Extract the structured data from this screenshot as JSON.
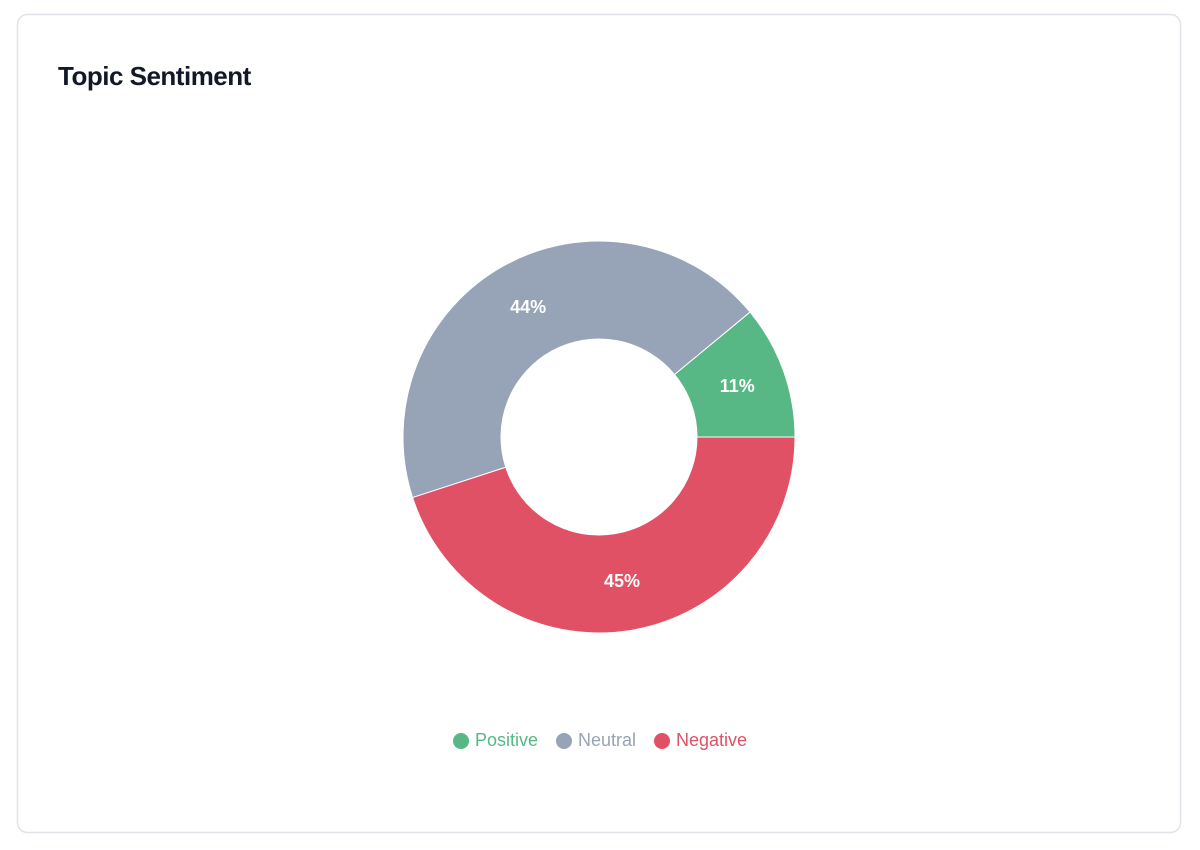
{
  "chart_data": {
    "type": "pie",
    "title": "Topic Sentiment",
    "categories": [
      "Positive",
      "Neutral",
      "Negative"
    ],
    "values": [
      11,
      44,
      45
    ],
    "value_labels": [
      "11%",
      "44%",
      "45%"
    ],
    "colors": [
      "#57b885",
      "#97a3b6",
      "#e05165"
    ]
  }
}
